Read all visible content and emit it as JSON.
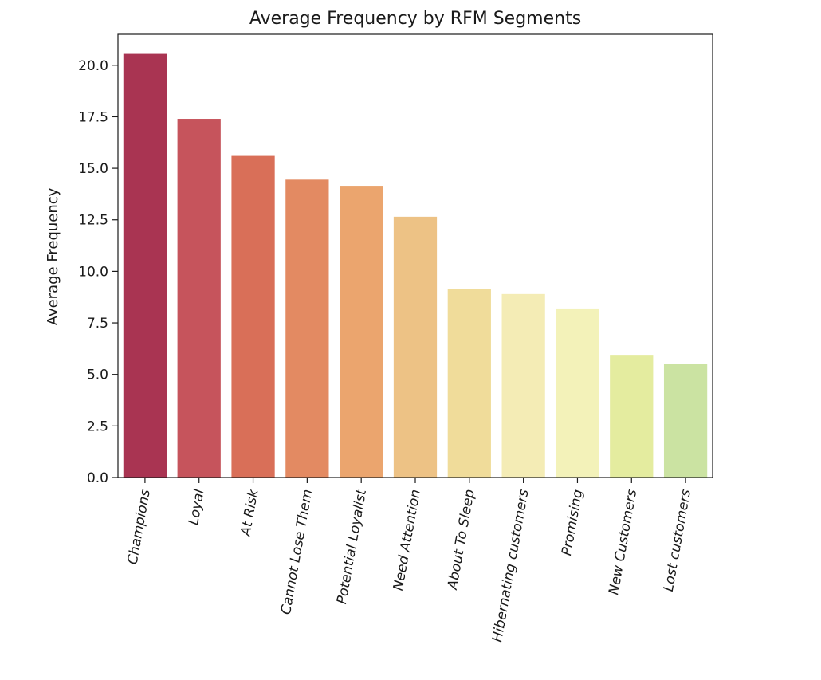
{
  "chart_data": {
    "type": "bar",
    "title": "Average Frequency by RFM Segments",
    "xlabel": "",
    "ylabel": "Average Frequency",
    "categories": [
      "Champions",
      "Loyal",
      "At Risk",
      "Cannot Lose Them",
      "Potential Loyalist",
      "Need Attention",
      "About To Sleep",
      "Hibernating customers",
      "Promising",
      "New Customers",
      "Lost customers"
    ],
    "values": [
      20.55,
      17.4,
      15.6,
      14.45,
      14.15,
      12.65,
      9.15,
      8.9,
      8.2,
      5.95,
      5.5
    ],
    "colors": [
      "#a93452",
      "#c6545c",
      "#d96f58",
      "#e38a62",
      "#eba56e",
      "#edc285",
      "#f0dc9a",
      "#f4ecb5",
      "#f3f2b9",
      "#e4ec9f",
      "#cbe3a2"
    ],
    "ylim": [
      0,
      21.5
    ],
    "yticks": [
      0.0,
      2.5,
      5.0,
      7.5,
      10.0,
      12.5,
      15.0,
      17.5,
      20.0
    ],
    "ytick_labels": [
      "0.0",
      "2.5",
      "5.0",
      "7.5",
      "10.0",
      "12.5",
      "15.0",
      "17.5",
      "20.0"
    ],
    "grid": false,
    "legend": "none"
  }
}
